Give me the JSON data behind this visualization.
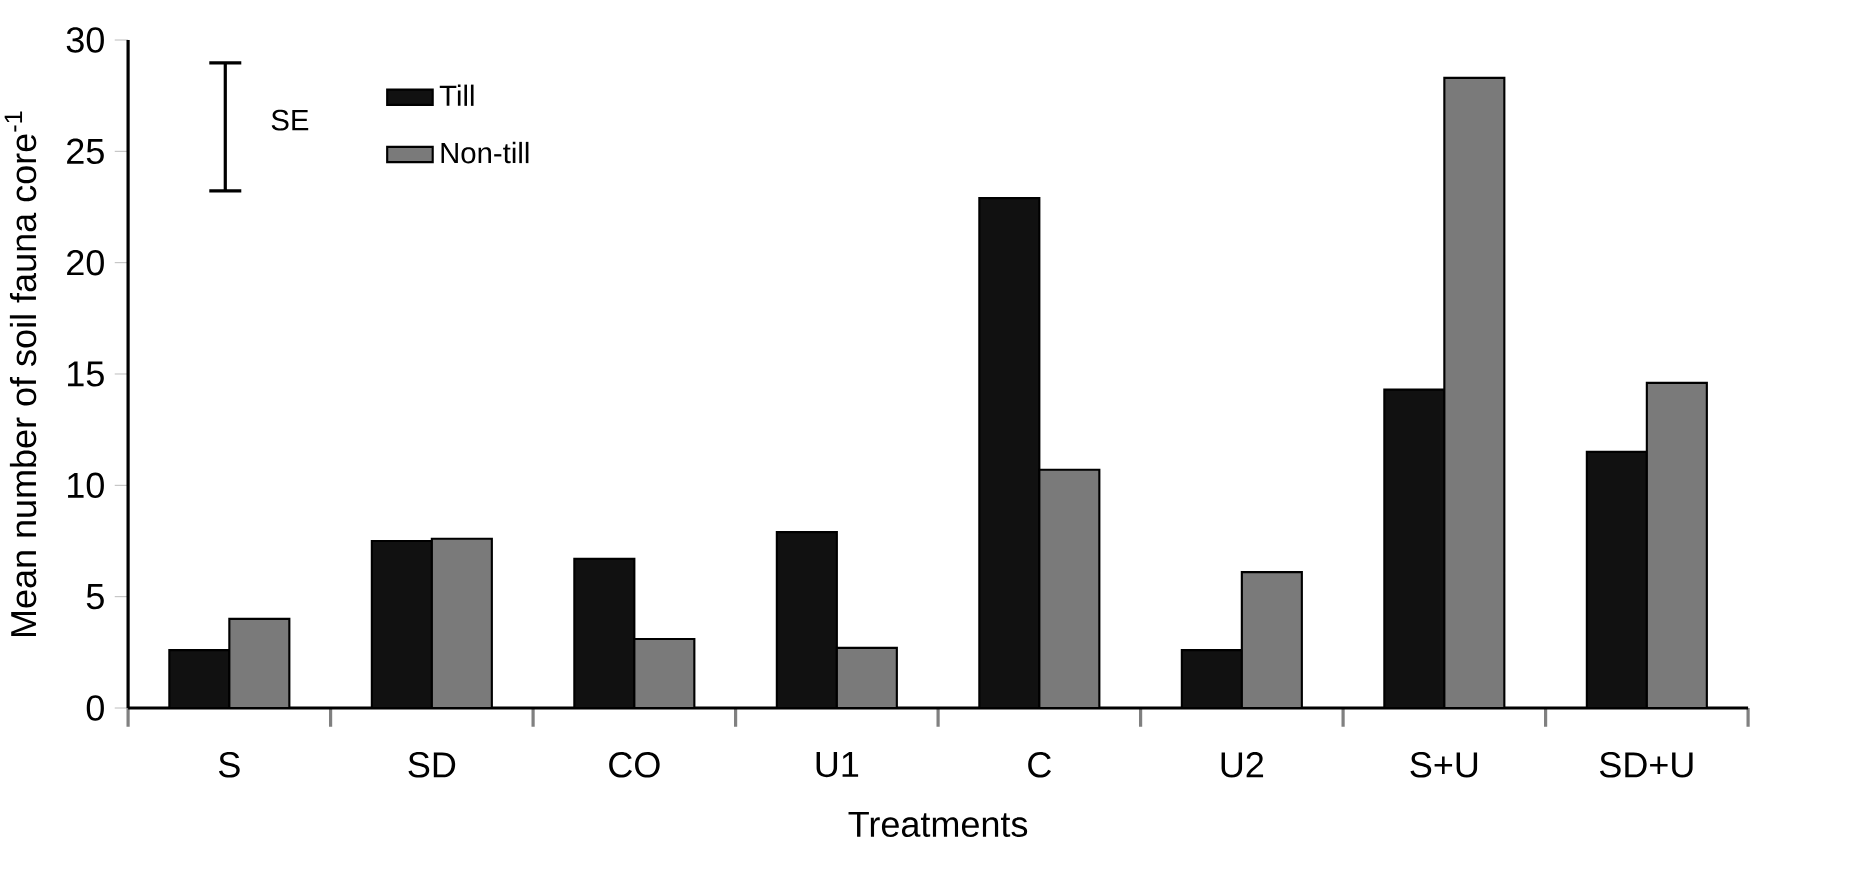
{
  "chart_data": {
    "type": "bar",
    "xlabel": "Treatments",
    "ylabel": "Mean number of soil fauna core$^{-1}$",
    "categories": [
      "S",
      "SD",
      "CO",
      "U1",
      "C",
      "U2",
      "S+U",
      "SD+U"
    ],
    "series": [
      {
        "name": "Till",
        "color": "#111111",
        "values": [
          2.6,
          7.5,
          6.7,
          7.9,
          22.9,
          2.6,
          14.3,
          11.5
        ]
      },
      {
        "name": "Non-till",
        "color": "#7a7a7a",
        "values": [
          4.0,
          7.6,
          3.1,
          2.7,
          10.7,
          6.1,
          28.3,
          14.6
        ]
      }
    ],
    "ylim": [
      0,
      30
    ],
    "yticks": [
      0,
      5,
      10,
      15,
      20,
      25,
      30
    ],
    "grid": false,
    "legend": "top left",
    "annotations": [
      "SE"
    ]
  }
}
